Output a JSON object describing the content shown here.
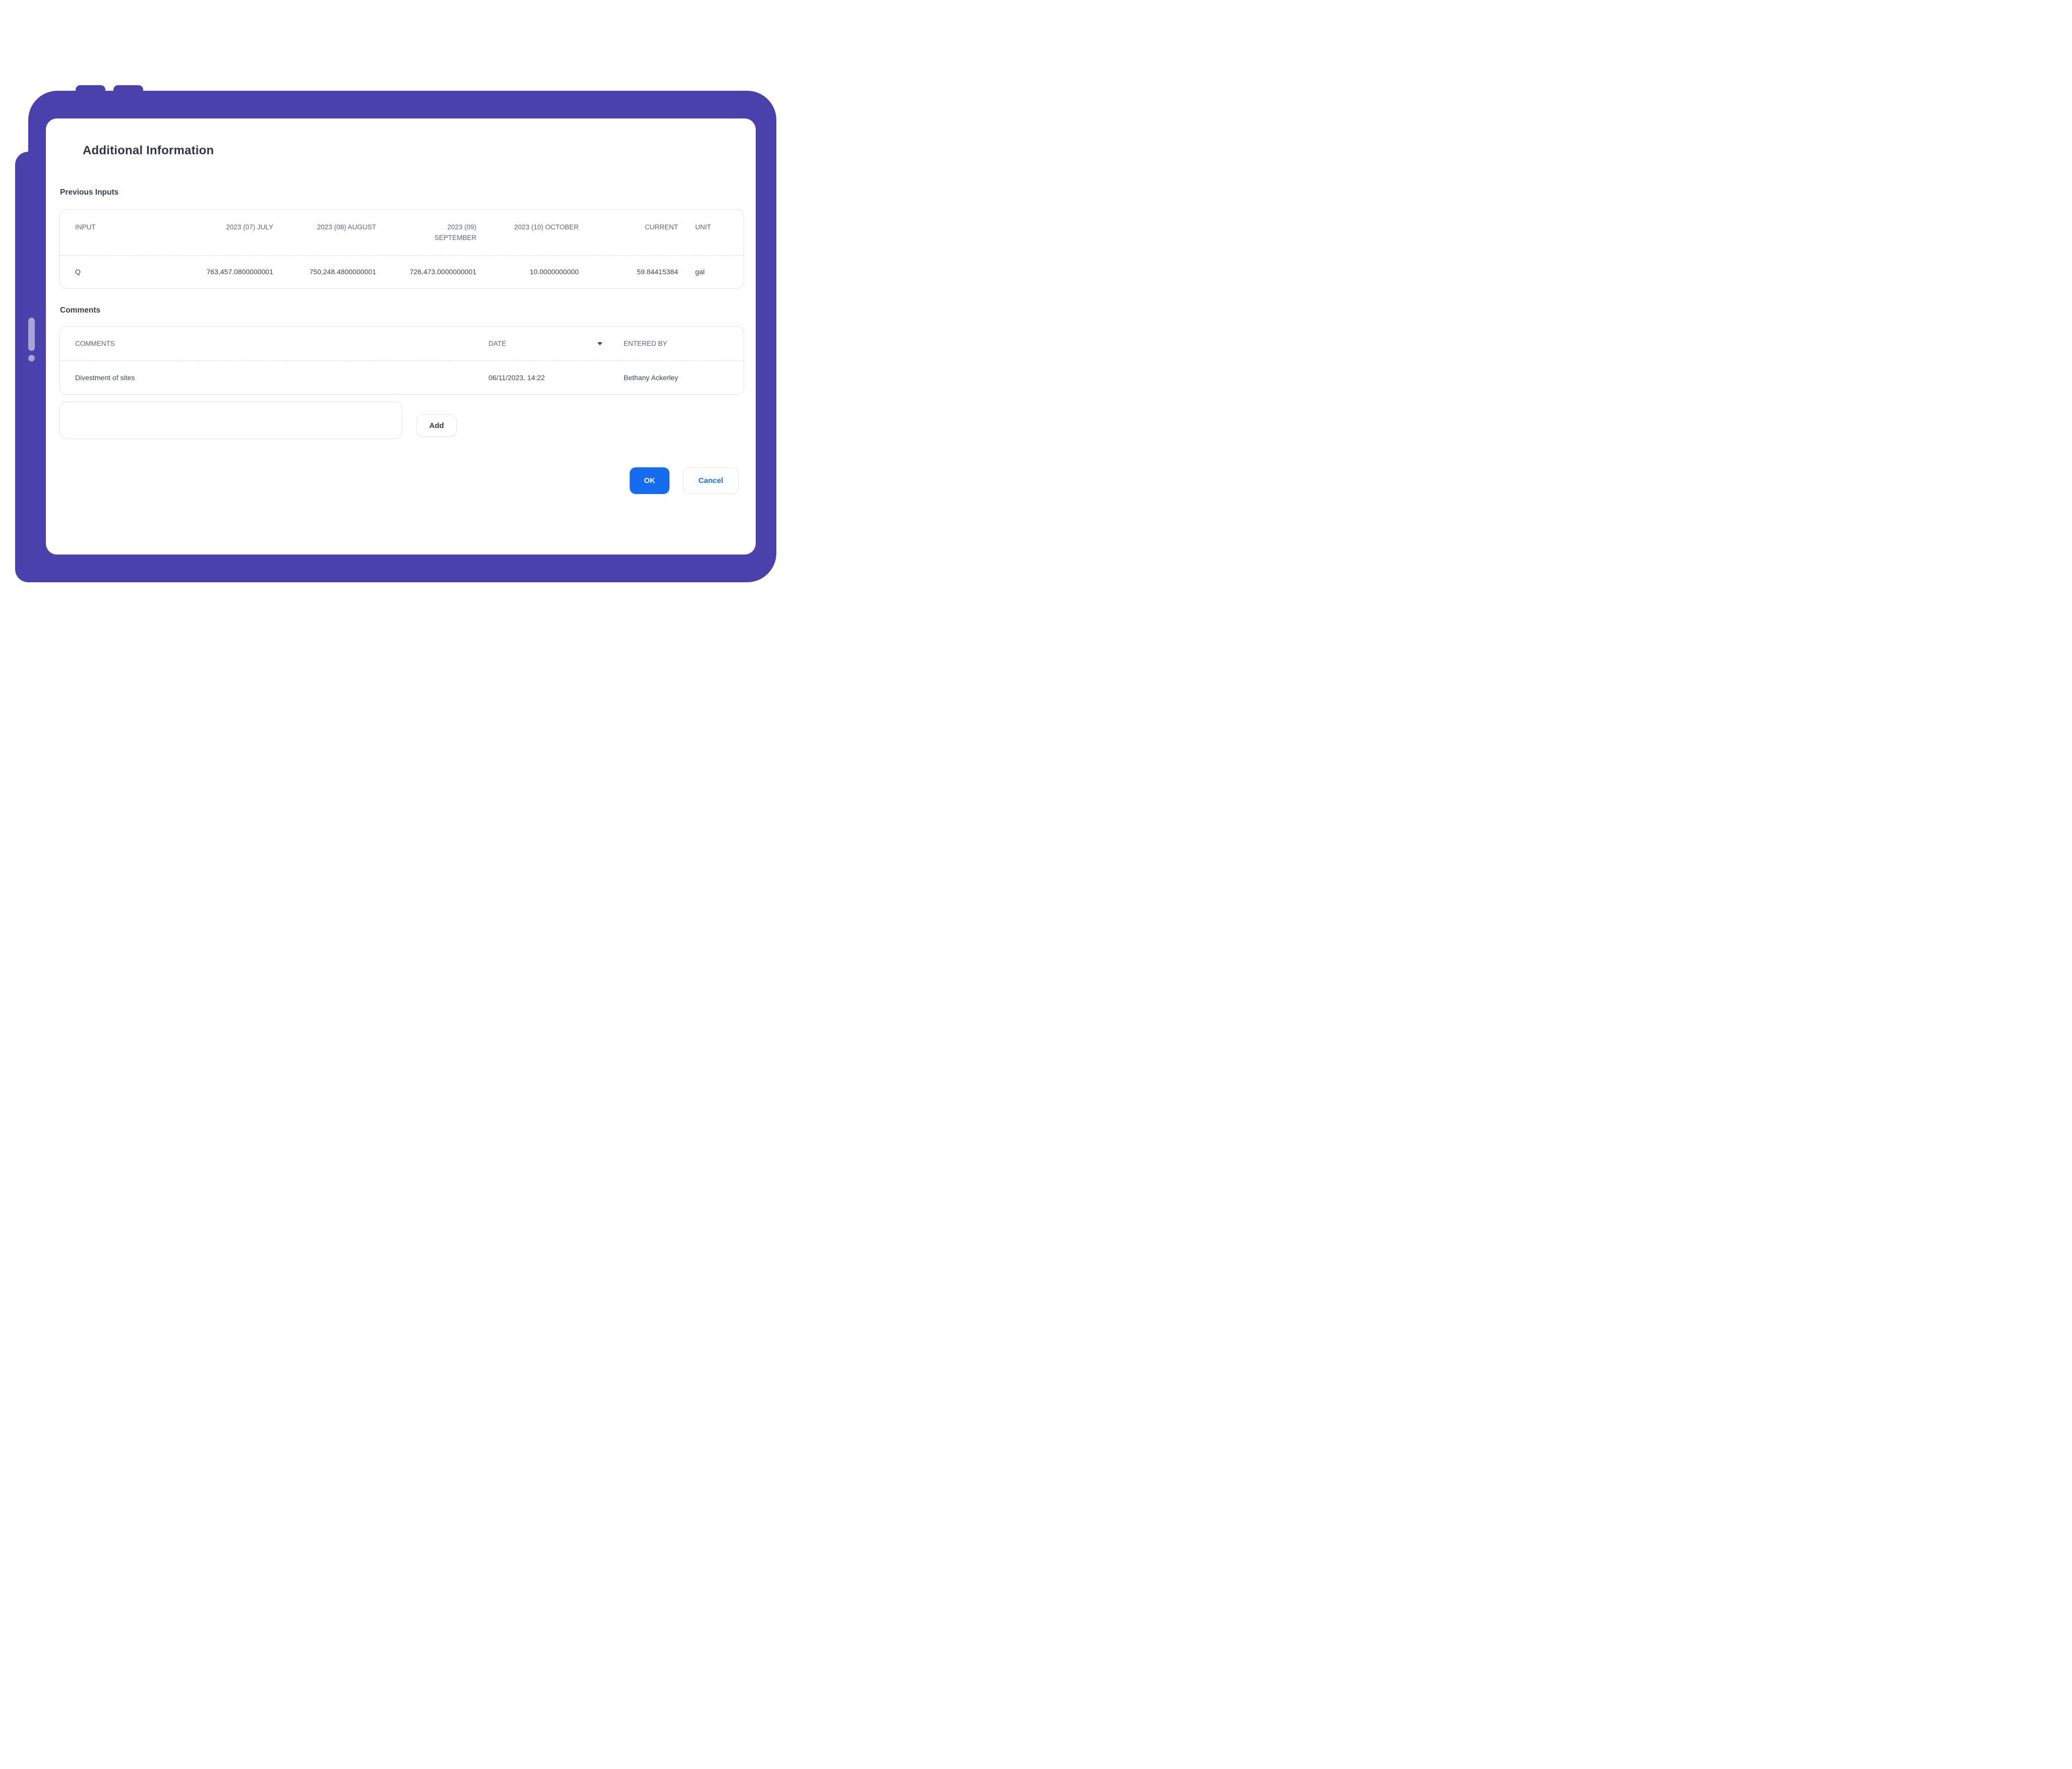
{
  "device": {
    "kind": "tablet-frame-illustration",
    "colors": {
      "frame": "#4a41ad",
      "buttons": "#a8a4d9"
    }
  },
  "dialog": {
    "title": "Additional Information",
    "previous_inputs": {
      "label": "Previous Inputs",
      "columns": {
        "input": "INPUT",
        "jul": "2023 (07) JULY",
        "aug": "2023 (08) AUGUST",
        "sep": "2023 (09) SEPTEMBER",
        "oct": "2023 (10) OCTOBER",
        "current": "CURRENT",
        "unit": "UNIT"
      },
      "row": {
        "input": "Q",
        "jul": "763,457.0800000001",
        "aug": "750,248.4800000001",
        "sep": "726,473.0000000001",
        "oct": "10.0000000000",
        "current": "59.84415384",
        "unit": "gal"
      }
    },
    "comments": {
      "label": "Comments",
      "columns": {
        "comments": "COMMENTS",
        "date": "DATE",
        "entered_by": "ENTERED BY"
      },
      "sort": {
        "column": "DATE",
        "direction": "descending"
      },
      "row": {
        "comment": "Divestment of sites",
        "date": "06/11/2023, 14:22",
        "entered_by": "Bethany Ackerley"
      },
      "input_value": "",
      "add_label": "Add"
    },
    "actions": {
      "ok_label": "OK",
      "cancel_label": "Cancel"
    },
    "colors": {
      "accent_blue": "#156cf0"
    }
  }
}
